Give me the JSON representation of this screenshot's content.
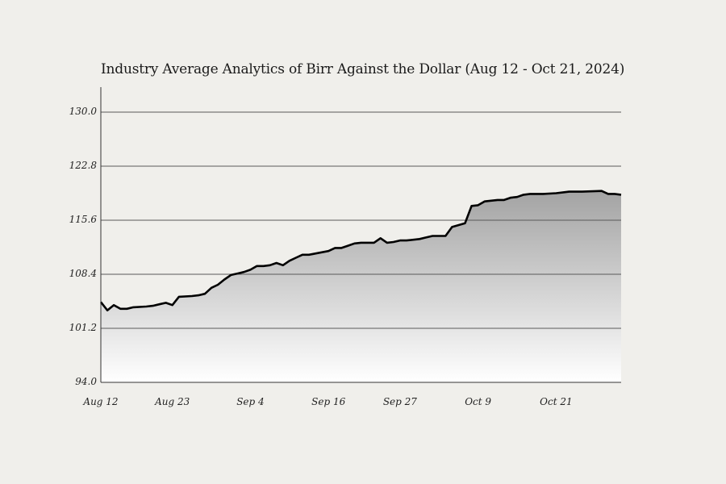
{
  "chart_data": {
    "type": "area",
    "title": "Industry Average Analytics  of Birr Against the Dollar (Aug 12 - Oct 21, 2024)",
    "xlabel": "",
    "ylabel": "",
    "ylim": [
      94.0,
      130.0
    ],
    "y_ticks": [
      "94.0",
      "101.2",
      "108.4",
      "115.6",
      "122.8",
      "130.0"
    ],
    "y_tick_values": [
      94.0,
      101.2,
      108.4,
      115.6,
      122.8,
      130.0
    ],
    "x_ticks": [
      "Aug 12",
      "Aug 23",
      "Sep 4",
      "Sep 16",
      "Sep 27",
      "Oct 9",
      "Oct 21"
    ],
    "x_tick_dates": [
      "2024-08-12",
      "2024-08-23",
      "2024-09-04",
      "2024-09-16",
      "2024-09-27",
      "2024-10-09",
      "2024-10-21"
    ],
    "xlim": [
      "2024-08-12",
      "2024-10-31"
    ],
    "grid": "horizontal",
    "line_color": "#000000",
    "fill_top_color": "#a3a3a3",
    "fill_bottom_color": "#ffffff",
    "series": [
      {
        "x": [
          "2024-08-12",
          "2024-08-13",
          "2024-08-14",
          "2024-08-15",
          "2024-08-16",
          "2024-08-17",
          "2024-08-19",
          "2024-08-20",
          "2024-08-21",
          "2024-08-22",
          "2024-08-23",
          "2024-08-24",
          "2024-08-26",
          "2024-08-27",
          "2024-08-28",
          "2024-08-29",
          "2024-08-30",
          "2024-08-31",
          "2024-09-01",
          "2024-09-02",
          "2024-09-03",
          "2024-09-04",
          "2024-09-05",
          "2024-09-06",
          "2024-09-07",
          "2024-09-08",
          "2024-09-09",
          "2024-09-10",
          "2024-09-11",
          "2024-09-12",
          "2024-09-13",
          "2024-09-16",
          "2024-09-17",
          "2024-09-18",
          "2024-09-19",
          "2024-09-20",
          "2024-09-21",
          "2024-09-23",
          "2024-09-24",
          "2024-09-25",
          "2024-09-26",
          "2024-09-27",
          "2024-09-28",
          "2024-09-30",
          "2024-10-01",
          "2024-10-02",
          "2024-10-04",
          "2024-10-05",
          "2024-10-07",
          "2024-10-08",
          "2024-10-09",
          "2024-10-10",
          "2024-10-12",
          "2024-10-13",
          "2024-10-14",
          "2024-10-15",
          "2024-10-16",
          "2024-10-17",
          "2024-10-18",
          "2024-10-19",
          "2024-10-21",
          "2024-10-22",
          "2024-10-23",
          "2024-10-25",
          "2024-10-28",
          "2024-10-29",
          "2024-10-30",
          "2024-10-31"
        ],
        "y": [
          104.7,
          103.6,
          104.3,
          103.8,
          103.8,
          104.0,
          104.1,
          104.2,
          104.4,
          104.6,
          104.3,
          105.4,
          105.5,
          105.6,
          105.8,
          106.6,
          107.0,
          107.7,
          108.3,
          108.5,
          108.7,
          109.0,
          109.5,
          109.5,
          109.6,
          109.9,
          109.6,
          110.2,
          110.6,
          111.0,
          111.0,
          111.5,
          111.9,
          111.9,
          112.2,
          112.5,
          112.6,
          112.6,
          113.2,
          112.6,
          112.7,
          112.9,
          112.9,
          113.1,
          113.3,
          113.5,
          113.5,
          114.7,
          115.2,
          117.5,
          117.6,
          118.1,
          118.3,
          118.3,
          118.6,
          118.7,
          119.0,
          119.1,
          119.1,
          119.1,
          119.2,
          119.3,
          119.4,
          119.4,
          119.5,
          119.1,
          119.1,
          119.0
        ]
      }
    ]
  }
}
